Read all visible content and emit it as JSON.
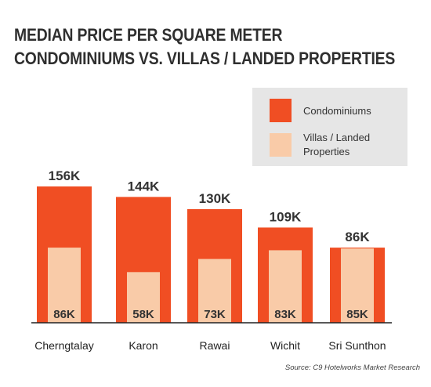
{
  "title": {
    "line1": "MEDIAN PRICE PER SQUARE METER",
    "line2": "CONDOMINIUMS VS. VILLAS / LANDED PROPERTIES"
  },
  "legend": {
    "items": [
      {
        "label": "Condominiums",
        "color": "#f04e23"
      },
      {
        "label": "Villas / Landed Properties",
        "color": "#f9cba8"
      }
    ]
  },
  "source": "Source: C9 Hotelworks Market Research",
  "chart_data": {
    "type": "bar",
    "layout": "overlapping",
    "categories": [
      "Cherngtalay",
      "Karon",
      "Rawai",
      "Wichit",
      "Sri Sunthon"
    ],
    "series": [
      {
        "name": "Condominiums",
        "color": "#f04e23",
        "values": [
          156,
          144,
          130,
          109,
          86
        ],
        "labels": [
          "156K",
          "144K",
          "130K",
          "109K",
          "86K"
        ]
      },
      {
        "name": "Villas / Landed Properties",
        "color": "#f9cba8",
        "values": [
          86,
          58,
          73,
          83,
          85
        ],
        "labels": [
          "86K",
          "58K",
          "73K",
          "83K",
          "85K"
        ]
      }
    ],
    "ylim": [
      0,
      160
    ],
    "grid": false,
    "legend_position": "top-right",
    "title": "MEDIAN PRICE PER SQUARE METER CONDOMINIUMS VS. VILLAS / LANDED PROPERTIES",
    "xlabel": "",
    "ylabel": ""
  }
}
